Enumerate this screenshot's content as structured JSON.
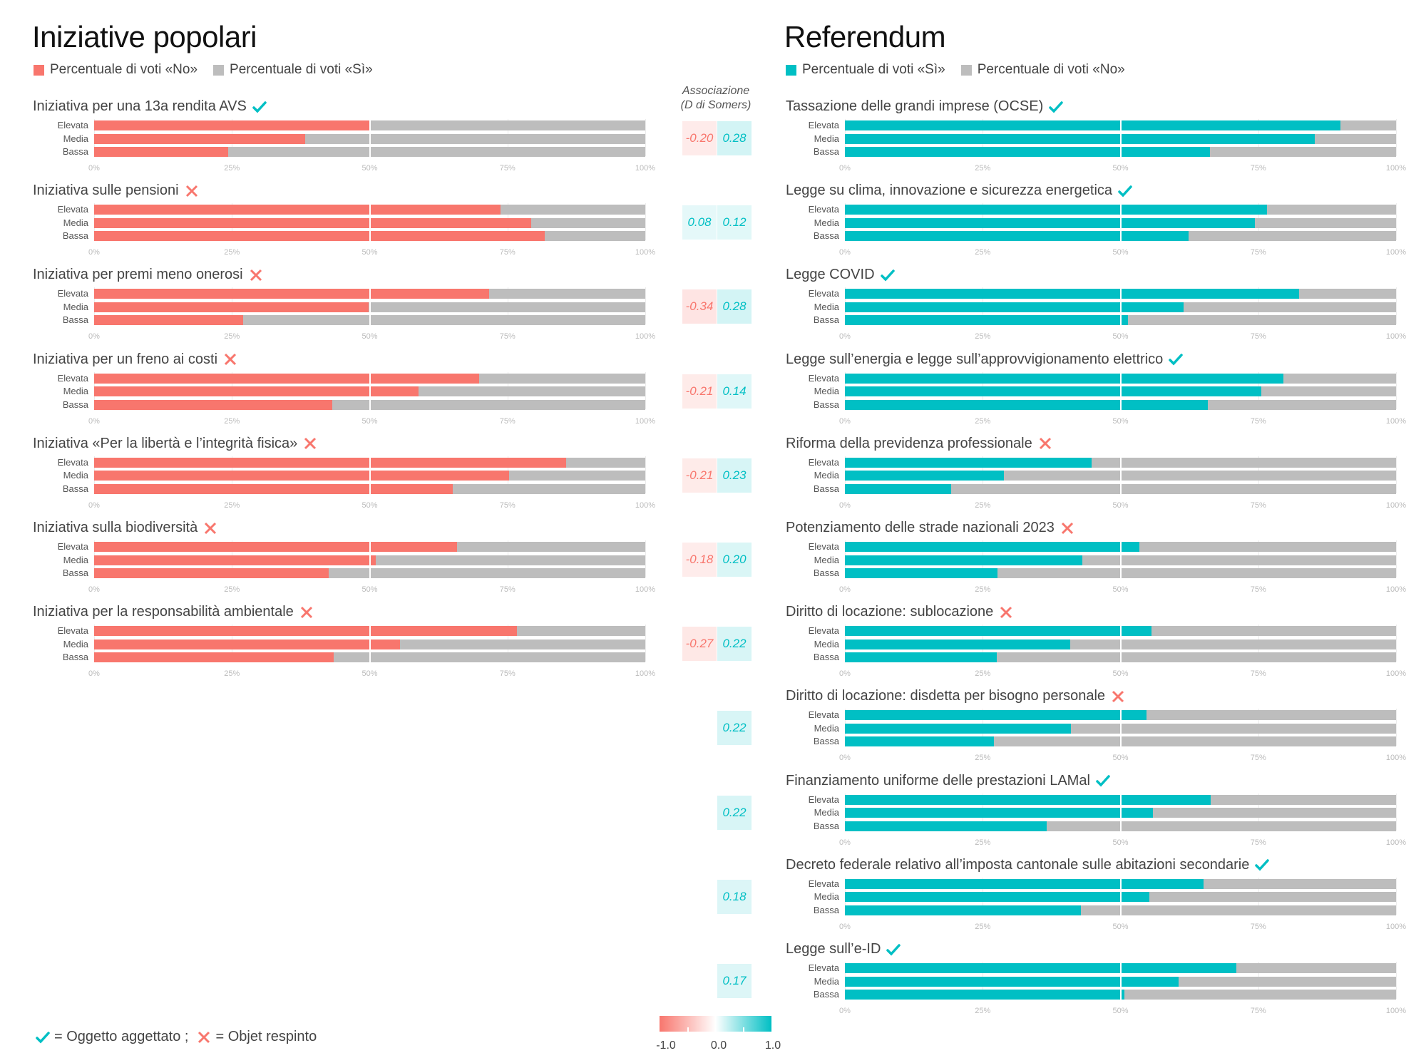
{
  "colors": {
    "no": "#f8766d",
    "yes": "#00bfc4",
    "grey": "#bdbdbd",
    "neg_text": "#f8766d",
    "pos_text": "#00bfc4"
  },
  "left": {
    "title": "Iniziative popolari",
    "legend": [
      {
        "label": "Percentuale di voti «No»",
        "color": "#f8766d"
      },
      {
        "label": "Percentuale di voti «Sì»",
        "color": "#bdbdbd"
      }
    ]
  },
  "right": {
    "title": "Referendum",
    "legend": [
      {
        "label": "Percentuale di voti «Sì»",
        "color": "#00bfc4"
      },
      {
        "label": "Percentuale di voti «No»",
        "color": "#bdbdbd"
      }
    ]
  },
  "assoc_header": {
    "line1": "Associazione",
    "line2": "(D di Somers)"
  },
  "footnote": {
    "accepted_label": "= Oggetto aggettato ;",
    "rejected_label": "= Objet respinto"
  },
  "colorbar": {
    "min_label": "-1.0",
    "mid_label": "0.0",
    "max_label": "1.0"
  },
  "chart_data": [
    {
      "type": "bar",
      "title": "Iniziative popolari",
      "measure": "Percentuale di voti «No» (stacked to 100%)",
      "categories": [
        "Elevata",
        "Media",
        "Bassa"
      ],
      "xlim": [
        0,
        100
      ],
      "xticks": [
        "0%",
        "25%",
        "50%",
        "75%",
        "100%"
      ],
      "series": [
        {
          "name": "Iniziativa per una 13a rendita AVS",
          "outcome": "accepted",
          "values": [
            50.0,
            38.3,
            24.3
          ],
          "assoc_left": "-0.20",
          "assoc_left_val": -0.2,
          "assoc_right": "0.28",
          "assoc_right_val": 0.28
        },
        {
          "name": "Iniziativa sulle pensioni",
          "outcome": "rejected",
          "values": [
            73.7,
            79.3,
            81.7
          ],
          "assoc_left": "0.08",
          "assoc_left_val": 0.08,
          "assoc_right": "0.12",
          "assoc_right_val": 0.12
        },
        {
          "name": "Iniziativa per premi meno onerosi",
          "outcome": "rejected",
          "values": [
            71.7,
            49.8,
            27.1
          ],
          "assoc_left": "-0.34",
          "assoc_left_val": -0.34,
          "assoc_right": "0.28",
          "assoc_right_val": 0.28
        },
        {
          "name": "Iniziativa per un freno ai costi",
          "outcome": "rejected",
          "values": [
            69.9,
            58.9,
            43.2
          ],
          "assoc_left": "-0.21",
          "assoc_left_val": -0.21,
          "assoc_right": "0.14",
          "assoc_right_val": 0.14
        },
        {
          "name": "Iniziativa «Per la libertà e l’integrità fisica»",
          "outcome": "rejected",
          "values": [
            85.6,
            75.3,
            65.1
          ],
          "assoc_left": "-0.21",
          "assoc_left_val": -0.21,
          "assoc_right": "0.23",
          "assoc_right_val": 0.23
        },
        {
          "name": "Iniziativa sulla biodiversità",
          "outcome": "rejected",
          "values": [
            65.8,
            51.1,
            42.6
          ],
          "assoc_left": "-0.18",
          "assoc_left_val": -0.18,
          "assoc_right": "0.20",
          "assoc_right_val": 0.2
        },
        {
          "name": "Iniziativa per la responsabilità ambientale",
          "outcome": "rejected",
          "values": [
            76.7,
            55.5,
            43.5
          ],
          "assoc_left": "-0.27",
          "assoc_left_val": -0.27,
          "assoc_right": "0.22",
          "assoc_right_val": 0.22
        }
      ]
    },
    {
      "type": "bar",
      "title": "Referendum",
      "measure": "Percentuale di voti «Sì» (stacked to 100%)",
      "categories": [
        "Elevata",
        "Media",
        "Bassa"
      ],
      "xlim": [
        0,
        100
      ],
      "xticks": [
        "0%",
        "25%",
        "50%",
        "75%",
        "100%"
      ],
      "series": [
        {
          "name": "Tassazione delle grandi imprese (OCSE)",
          "outcome": "accepted",
          "values": [
            89.9,
            85.2,
            66.3
          ],
          "assoc": "0.28",
          "assoc_val": 0.28
        },
        {
          "name": "Legge su clima, innovazione e sicurezza energetica",
          "outcome": "accepted",
          "values": [
            76.6,
            74.4,
            62.3
          ],
          "assoc": "0.12",
          "assoc_val": 0.12
        },
        {
          "name": "Legge COVID",
          "outcome": "accepted",
          "values": [
            82.4,
            61.4,
            51.4
          ],
          "assoc": "0.28",
          "assoc_val": 0.28
        },
        {
          "name": "Legge sull’energia e legge sull’approvvigionamento elettrico",
          "outcome": "accepted",
          "values": [
            79.5,
            75.6,
            65.9
          ],
          "assoc": "0.14",
          "assoc_val": 0.14
        },
        {
          "name": "Riforma della previdenza professionale",
          "outcome": "rejected",
          "values": [
            44.8,
            28.8,
            19.3
          ],
          "assoc": "0.23",
          "assoc_val": 0.23
        },
        {
          "name": "Potenziamento delle strade nazionali 2023",
          "outcome": "rejected",
          "values": [
            53.4,
            43.1,
            27.7
          ],
          "assoc": "0.20",
          "assoc_val": 0.2
        },
        {
          "name": "Diritto di locazione: sublocazione",
          "outcome": "rejected",
          "values": [
            55.6,
            40.9,
            27.6
          ],
          "assoc": "0.22",
          "assoc_val": 0.22
        },
        {
          "name": "Diritto di locazione: disdetta per bisogno personale",
          "outcome": "rejected",
          "values": [
            54.7,
            41.0,
            27.0
          ],
          "assoc": "0.22",
          "assoc_val": 0.22
        },
        {
          "name": "Finanziamento uniforme delle prestazioni LAMal",
          "outcome": "accepted",
          "values": [
            66.4,
            55.9,
            36.6
          ],
          "assoc": "0.22",
          "assoc_val": 0.22
        },
        {
          "name": "Decreto federale relativo all’imposta cantonale sulle abitazioni secondarie",
          "outcome": "accepted",
          "values": [
            65.1,
            55.2,
            42.8
          ],
          "assoc": "0.18",
          "assoc_val": 0.18
        },
        {
          "name": "Legge sull’e-ID",
          "outcome": "accepted",
          "values": [
            71.0,
            60.6,
            50.7
          ],
          "assoc": "0.17",
          "assoc_val": 0.17
        }
      ]
    }
  ]
}
